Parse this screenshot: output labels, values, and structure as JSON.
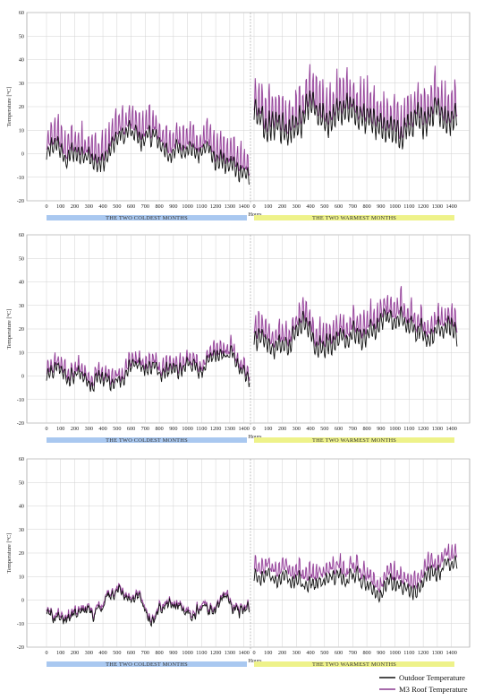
{
  "legend": {
    "outdoor": "Outdoor Temperature",
    "roof": "M3 Roof Temperature"
  },
  "colors": {
    "outdoor": "#111111",
    "roof": "#8a3a8f",
    "roof_light": "#d9a6dc",
    "cold_band": "#a9c8f0",
    "warm_band": "#eef28a",
    "grid": "#d2d2d2"
  },
  "chart_data": [
    {
      "type": "line",
      "panel": "top",
      "ylabel": "Temperature [°C]",
      "xlabel": "Hours",
      "ylim": [
        -20,
        60
      ],
      "yticks": [
        -20,
        -10,
        0,
        10,
        20,
        30,
        40,
        50,
        60
      ],
      "xticks": [
        0,
        100,
        200,
        300,
        400,
        500,
        600,
        700,
        800,
        900,
        1000,
        1100,
        1200,
        1300,
        1400
      ],
      "segments": [
        {
          "band_label": "THE TWO COLDEST MONTHS",
          "outdoor_mean": 2,
          "outdoor_amp": 3.5,
          "roof_mean": 6,
          "roof_amp": 10,
          "trend": 2.0,
          "rise_end": 6
        },
        {
          "band_label": "THE TWO WARMEST MONTHS",
          "outdoor_mean": 20,
          "outdoor_amp": 6,
          "roof_mean": 24,
          "roof_amp": 15,
          "trend": 0,
          "rise_end": 0
        }
      ],
      "series": [
        {
          "name": "Outdoor Temperature",
          "peaks": [
            [
              "cold",
              -10,
              12
            ],
            [
              "warm",
              13,
              30
            ]
          ]
        },
        {
          "name": "M3 Roof Temperature",
          "peaks": [
            [
              "cold",
              -5,
              28
            ],
            [
              "warm",
              13,
              43
            ]
          ]
        }
      ]
    },
    {
      "type": "line",
      "panel": "middle",
      "ylabel": "Temperature [°C]",
      "xlabel": "Hours",
      "ylim": [
        -20,
        60
      ],
      "yticks": [
        -20,
        -10,
        0,
        10,
        20,
        30,
        40,
        50,
        60
      ],
      "xticks": [
        0,
        100,
        200,
        300,
        400,
        500,
        600,
        700,
        800,
        900,
        1000,
        1100,
        1200,
        1300,
        1400
      ],
      "segments": [
        {
          "band_label": "THE TWO COLDEST MONTHS",
          "outdoor_mean": 2,
          "outdoor_amp": 2.5,
          "roof_mean": 4,
          "roof_amp": 5,
          "trend": 0,
          "rise_end": 0
        },
        {
          "band_label": "THE TWO WARMEST MONTHS",
          "outdoor_mean": 18,
          "outdoor_amp": 4,
          "roof_mean": 22,
          "roof_amp": 8,
          "trend": 0,
          "rise_end": 0
        }
      ],
      "series": [
        {
          "name": "Outdoor Temperature",
          "peaks": [
            [
              "cold",
              -11,
              12
            ],
            [
              "warm",
              9,
              27
            ]
          ]
        },
        {
          "name": "M3 Roof Temperature",
          "peaks": [
            [
              "cold",
              -8,
              16
            ],
            [
              "warm",
              13,
              39
            ]
          ]
        }
      ]
    },
    {
      "type": "line",
      "panel": "bottom",
      "ylabel": "Temperature [°C]",
      "xlabel": "Hours",
      "ylim": [
        -20,
        60
      ],
      "yticks": [
        -20,
        -10,
        0,
        10,
        20,
        30,
        40,
        50,
        60
      ],
      "xticks": [
        0,
        100,
        200,
        300,
        400,
        500,
        600,
        700,
        800,
        900,
        1000,
        1100,
        1200,
        1300,
        1400
      ],
      "segments": [
        {
          "band_label": "THE TWO COLDEST MONTHS",
          "outdoor_mean": -3,
          "outdoor_amp": 1.2,
          "roof_mean": -2,
          "roof_amp": 1.8,
          "trend": 0,
          "rise_end": 0
        },
        {
          "band_label": "THE TWO WARMEST MONTHS",
          "outdoor_mean": 12,
          "outdoor_amp": 2.5,
          "roof_mean": 16,
          "roof_amp": 5,
          "trend": 0,
          "rise_end": 0
        }
      ],
      "series": [
        {
          "name": "Outdoor Temperature",
          "peaks": [
            [
              "cold",
              -12,
              7
            ],
            [
              "warm",
              4,
              19
            ]
          ]
        },
        {
          "name": "M3 Roof Temperature",
          "peaks": [
            [
              "cold",
              -10,
              6
            ],
            [
              "warm",
              6,
              29
            ]
          ]
        }
      ]
    }
  ]
}
